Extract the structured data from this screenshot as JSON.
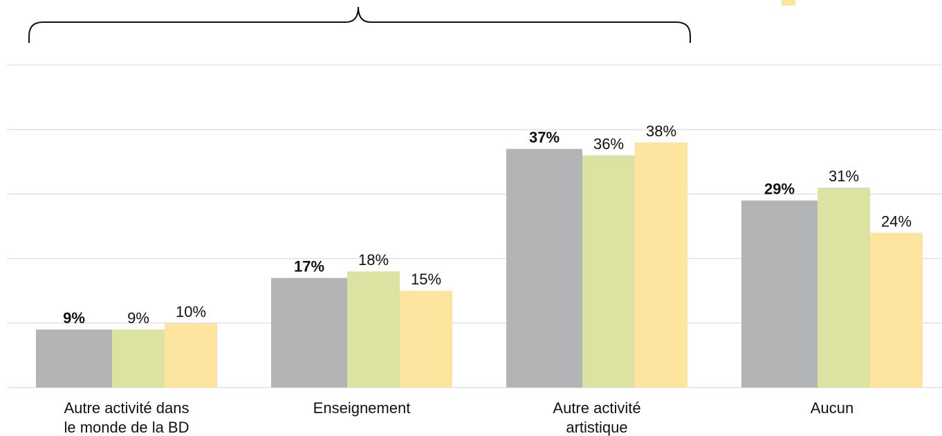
{
  "chart_data": {
    "type": "bar",
    "categories": [
      [
        "Autre activité dans",
        "le monde de la BD"
      ],
      [
        "Enseignement"
      ],
      [
        "Autre activité",
        "artistique"
      ],
      [
        "Aucun"
      ]
    ],
    "series": [
      {
        "color": "#b3b4b6",
        "values": [
          9,
          17,
          37,
          29
        ],
        "labels": [
          "9%",
          "17%",
          "37%",
          "29%"
        ],
        "bold": true
      },
      {
        "color": "#dce3a2",
        "values": [
          9,
          18,
          36,
          31
        ],
        "labels": [
          "9%",
          "18%",
          "36%",
          "31%"
        ],
        "bold": false
      },
      {
        "color": "#fde49f",
        "values": [
          10,
          15,
          38,
          24
        ],
        "labels": [
          "10%",
          "15%",
          "38%",
          "24%"
        ],
        "bold": false
      }
    ],
    "ylim": [
      0,
      50
    ],
    "grid": true,
    "title": "",
    "xlabel": "",
    "ylabel": ""
  },
  "legend_swatch_color": "#fde49f"
}
